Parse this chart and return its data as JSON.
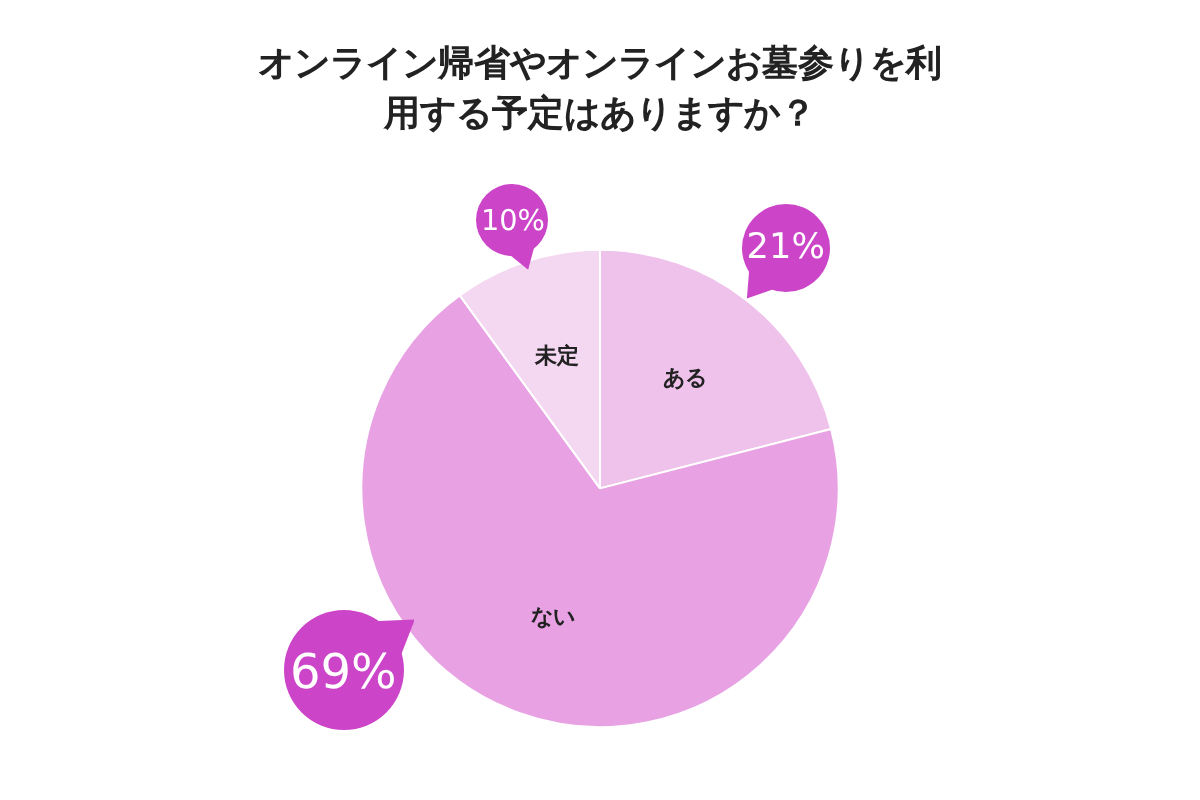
{
  "chart_data": {
    "type": "pie",
    "title": "オンライン帰省やオンラインお墓参りを利用する予定はありますか？",
    "categories": [
      "ある",
      "ない",
      "未定"
    ],
    "values": [
      21,
      69,
      10
    ],
    "colors": [
      "#efc2ec",
      "#e8a2e4",
      "#f4d8f1"
    ],
    "value_labels": [
      "21%",
      "69%",
      "10%"
    ],
    "legend": false
  }
}
